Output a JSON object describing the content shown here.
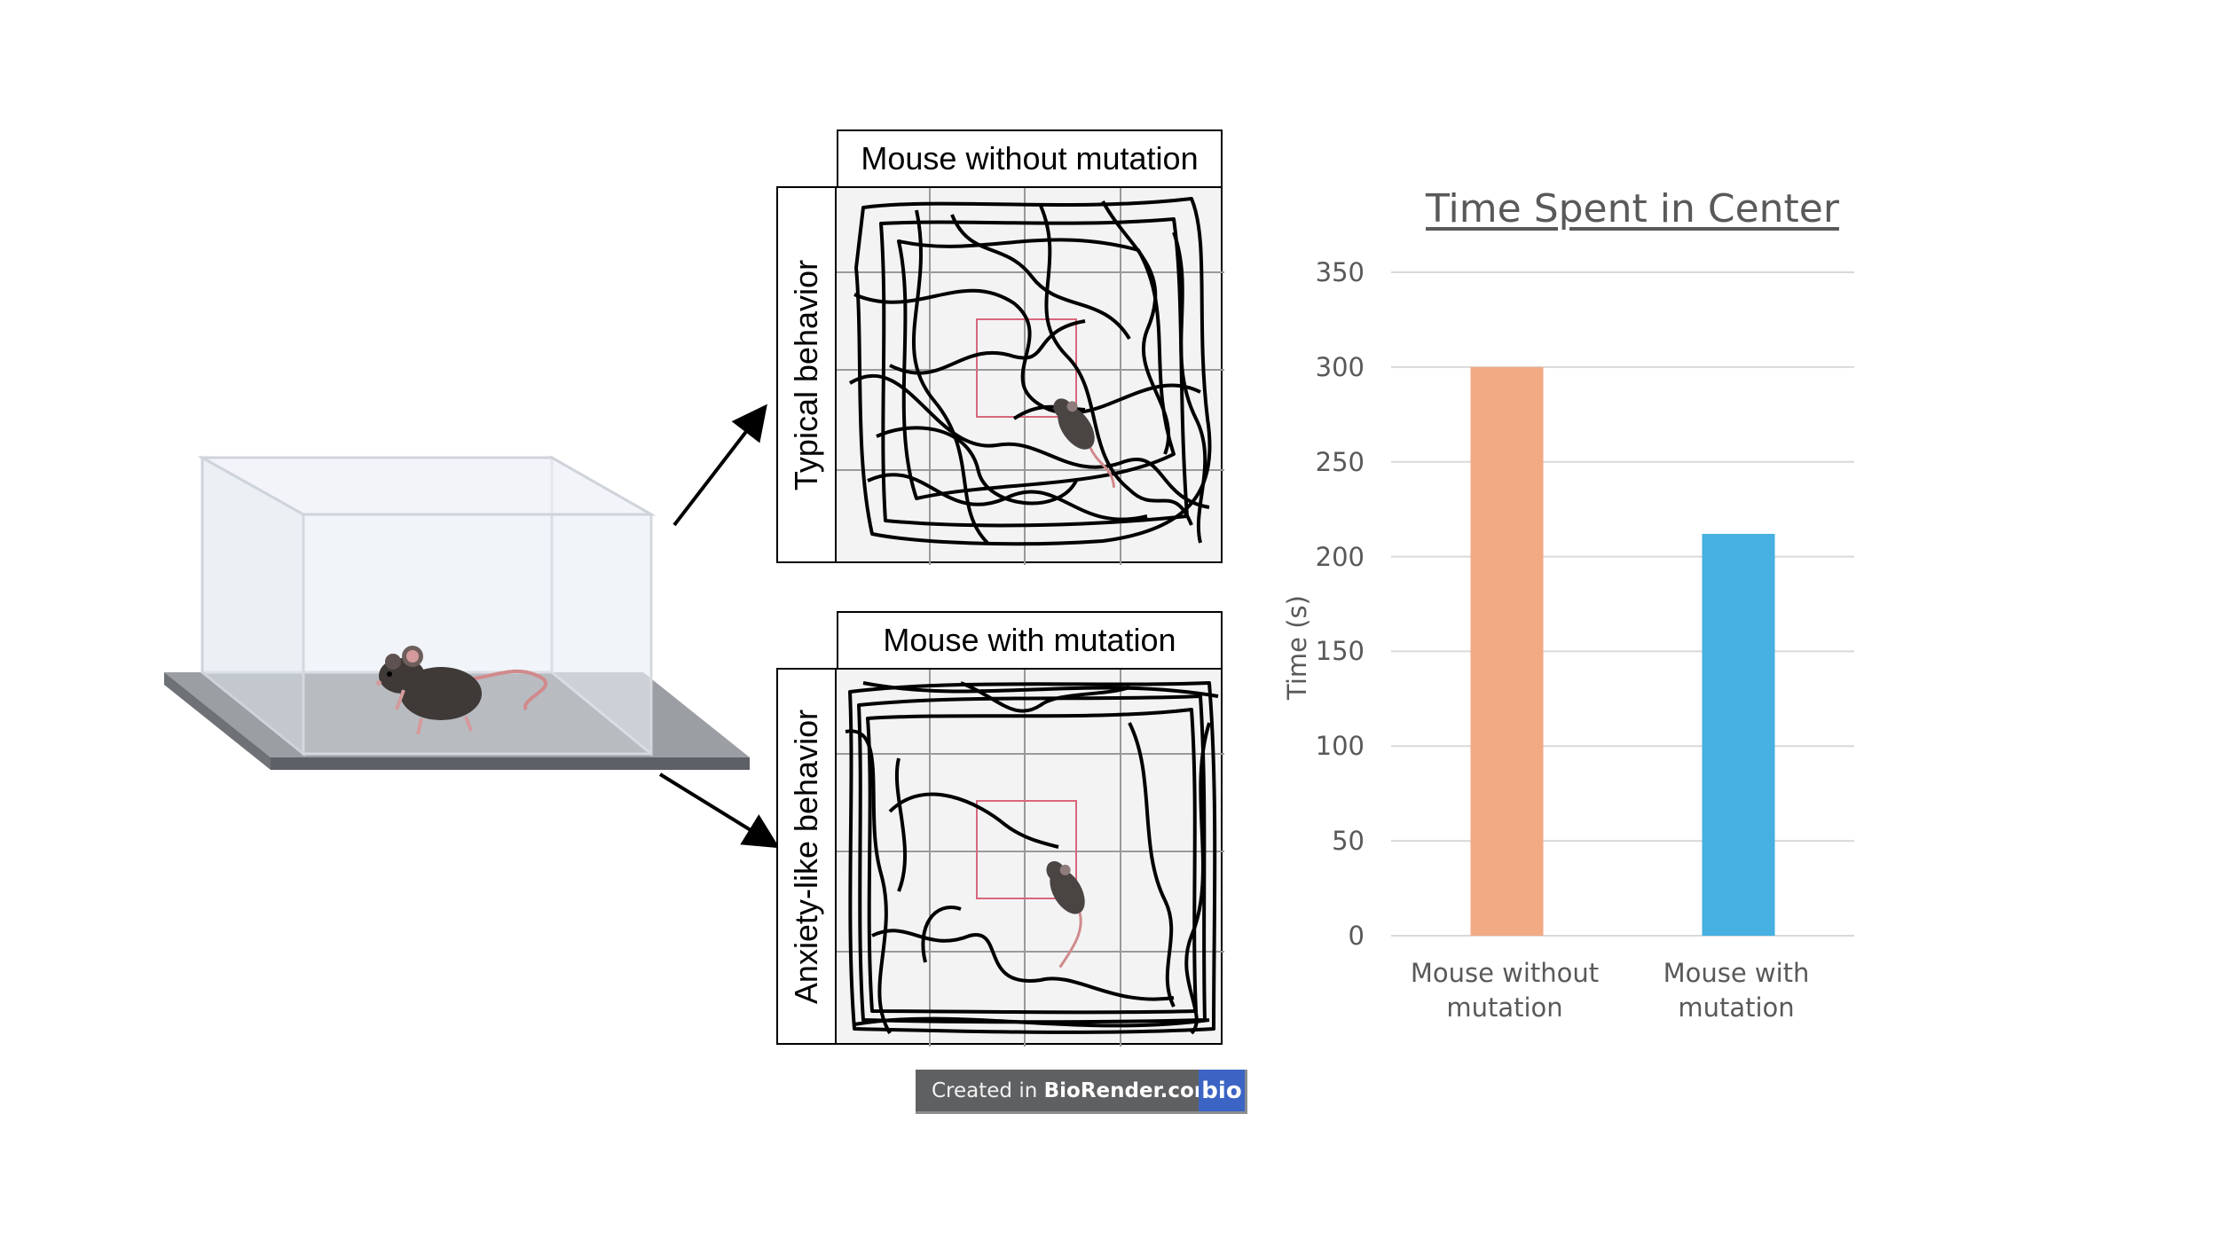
{
  "panels": {
    "top": {
      "header": "Mouse without mutation",
      "side": "Typical behavior"
    },
    "bottom": {
      "header": "Mouse with mutation",
      "side": "Anxiety-like behavior"
    }
  },
  "chart_data": {
    "type": "bar",
    "title": "Time Spent in Center",
    "xlabel": "",
    "ylabel": "Time (s)",
    "categories": [
      "Mouse without mutation",
      "Mouse with mutation"
    ],
    "category_lines": [
      [
        "Mouse without",
        "mutation"
      ],
      [
        "Mouse with",
        "mutation"
      ]
    ],
    "values": [
      300,
      212
    ],
    "colors": [
      "#f2aa84",
      "#45b0e1"
    ],
    "ylim": [
      0,
      350
    ],
    "yticks": [
      0,
      50,
      100,
      150,
      200,
      250,
      300,
      350
    ],
    "grid": true
  },
  "badge": {
    "prefix": "Created in ",
    "brand": "BioRender.com",
    "logo": "bio"
  },
  "colors": {
    "center_zone": "#d9677c",
    "track": "#000000",
    "arena_bg": "#f3f3f4"
  }
}
